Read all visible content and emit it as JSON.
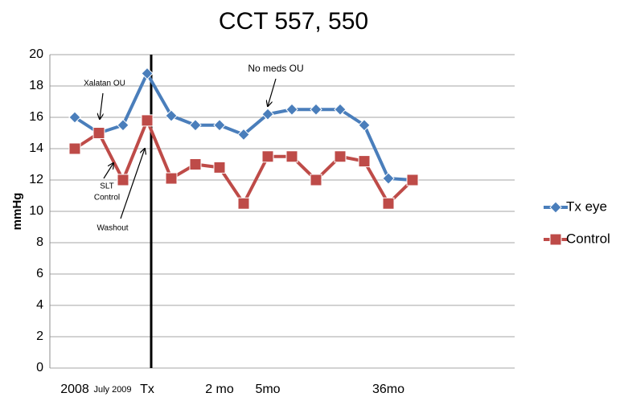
{
  "chart_data": {
    "type": "line",
    "title": "CCT 557, 550",
    "y_label": "mmHg",
    "categories": [
      "2008",
      "July 2009",
      null,
      "Tx",
      null,
      null,
      "2 mo",
      null,
      "5mo",
      null,
      null,
      null,
      null,
      "36mo",
      null
    ],
    "series": [
      {
        "name": "Tx eye",
        "color": "#4a7ebb",
        "marker": "diamond",
        "values": [
          16,
          15,
          15.5,
          18.8,
          16.1,
          15.5,
          15.5,
          14.9,
          16.2,
          16.5,
          16.5,
          16.5,
          15.5,
          12.1,
          12.0
        ]
      },
      {
        "name": "Control",
        "color": "#be4b48",
        "marker": "square",
        "values": [
          14,
          15,
          12,
          15.8,
          12.1,
          13,
          12.8,
          10.5,
          13.5,
          13.5,
          12,
          13.5,
          13.2,
          10.5,
          12
        ]
      }
    ],
    "ylim": [
      0,
      20
    ],
    "yticks": [
      0,
      2,
      4,
      6,
      8,
      10,
      12,
      14,
      16,
      18,
      20
    ],
    "grid": true,
    "legend": "right",
    "annotations": [
      {
        "text": "Xalatan OU"
      },
      {
        "text": "No meds OU"
      },
      {
        "lines": [
          "SLT",
          "Control"
        ]
      },
      {
        "text": "Washout"
      }
    ]
  }
}
